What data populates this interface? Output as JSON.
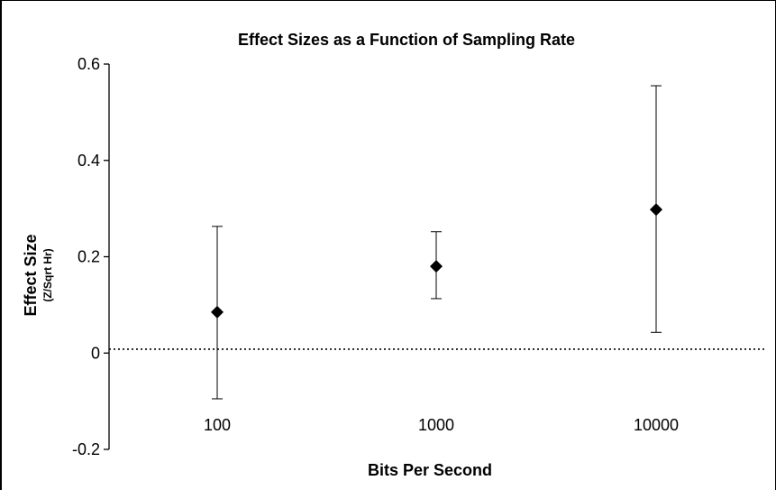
{
  "chart_data": {
    "type": "scatter",
    "title": "Effect Sizes as a Function of Sampling Rate",
    "xlabel": "Bits Per Second",
    "ylabel": "Effect Size",
    "ylabel_sub": "(Z/Sqrt Hr)",
    "categories": [
      "100",
      "1000",
      "10000"
    ],
    "y_ticks": [
      {
        "value": 0.6,
        "label": "0.6"
      },
      {
        "value": 0.4,
        "label": "0.4"
      },
      {
        "value": 0.2,
        "label": "0.2"
      },
      {
        "value": 0,
        "label": "0"
      },
      {
        "value": -0.2,
        "label": "-0.2"
      }
    ],
    "ylim": [
      -0.2,
      0.6
    ],
    "points": [
      {
        "x": "100",
        "y": 0.085,
        "err_low": -0.095,
        "err_high": 0.263
      },
      {
        "x": "1000",
        "y": 0.18,
        "err_low": 0.113,
        "err_high": 0.252
      },
      {
        "x": "10000",
        "y": 0.298,
        "err_low": 0.043,
        "err_high": 0.555
      }
    ],
    "reference_line": {
      "y": 0.008,
      "style": "dotted"
    },
    "grid": false,
    "marker": "diamond",
    "marker_color": "#000000"
  }
}
